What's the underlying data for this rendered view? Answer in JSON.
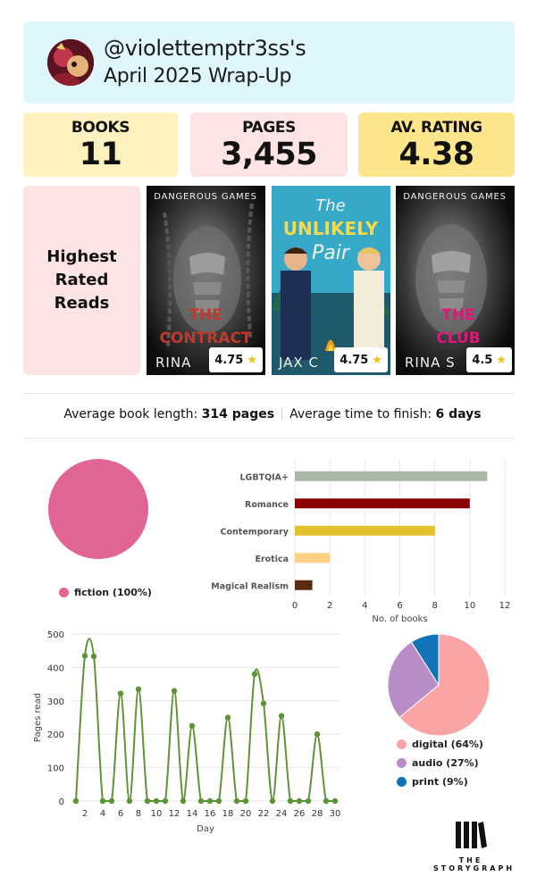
{
  "header": {
    "username": "@violettemptr3ss's",
    "subtitle": "April 2025 Wrap-Up",
    "avatar_icon": "avatar-illustration"
  },
  "stats": [
    {
      "label": "BOOKS",
      "value": "11",
      "color": "#fdf1c0"
    },
    {
      "label": "PAGES",
      "value": "3,455",
      "color": "#fde4e4"
    },
    {
      "label": "AV. RATING",
      "value": "4.38",
      "color": "#fde58c"
    }
  ],
  "highest_rated": {
    "heading": "Highest Rated Reads",
    "books": [
      {
        "series_label": "DANGEROUS GAMES",
        "title_line1": "THE",
        "title_line2": "CONTRACT",
        "author": "RINA",
        "rating": "4.75",
        "title_color": "#c0392b"
      },
      {
        "series_label": "",
        "title_line1": "The",
        "title_line2": "UNLIKELY",
        "title_line3": "Pair",
        "author": "JAX C",
        "rating": "4.75"
      },
      {
        "series_label": "DANGEROUS GAMES",
        "title_line1": "THE",
        "title_line2": "CLUB",
        "author": "RINA S",
        "rating": "4.5",
        "title_color": "#e0167a"
      }
    ]
  },
  "averages": {
    "book_length_label": "Average book length:",
    "book_length_value": "314 pages",
    "time_label": "Average time to finish:",
    "time_value": "6 days"
  },
  "chart_data": [
    {
      "type": "pie",
      "slices": [
        {
          "label": "fiction (100%)",
          "value": 100,
          "color": "#e06494"
        }
      ]
    },
    {
      "type": "bar",
      "orientation": "horizontal",
      "categories": [
        "LGBTQIA+",
        "Romance",
        "Contemporary",
        "Erotica",
        "Magical Realism"
      ],
      "values": [
        11,
        10,
        8,
        2,
        1
      ],
      "colors": [
        "#a9b8a4",
        "#8b0000",
        "#e2c22a",
        "#ffd086",
        "#5a2a0e"
      ],
      "xlabel": "No. of books",
      "xlim": [
        0,
        12
      ],
      "xticks": [
        "0",
        "2",
        "4",
        "6",
        "8",
        "10",
        "12"
      ],
      "grid": true
    },
    {
      "type": "line",
      "x": [
        1,
        2,
        3,
        4,
        5,
        6,
        7,
        8,
        9,
        10,
        11,
        12,
        13,
        14,
        15,
        16,
        17,
        18,
        19,
        20,
        21,
        22,
        23,
        24,
        25,
        26,
        27,
        28,
        29,
        30
      ],
      "values": [
        0,
        435,
        433,
        0,
        0,
        322,
        0,
        335,
        0,
        0,
        0,
        330,
        0,
        225,
        0,
        0,
        0,
        250,
        0,
        0,
        380,
        292,
        0,
        255,
        0,
        0,
        0,
        200,
        0,
        0
      ],
      "xlabel": "Day",
      "ylabel": "Pages read",
      "ylim": [
        0,
        500
      ],
      "yticks": [
        "0",
        "100",
        "200",
        "300",
        "400",
        "500"
      ],
      "xticks": [
        "2",
        "4",
        "6",
        "8",
        "10",
        "12",
        "14",
        "16",
        "18",
        "20",
        "22",
        "24",
        "26",
        "28",
        "30"
      ],
      "color": "#5e9438",
      "grid": true
    },
    {
      "type": "pie",
      "slices": [
        {
          "label": "digital (64%)",
          "value": 64,
          "color": "#f9a5a5"
        },
        {
          "label": "audio (27%)",
          "value": 27,
          "color": "#b88cc7"
        },
        {
          "label": "print (9%)",
          "value": 9,
          "color": "#0f75b6"
        }
      ]
    }
  ],
  "logo": {
    "line1": "THE",
    "line2": "STORYGRAPH",
    "icon": "storygraph-logo-icon"
  }
}
